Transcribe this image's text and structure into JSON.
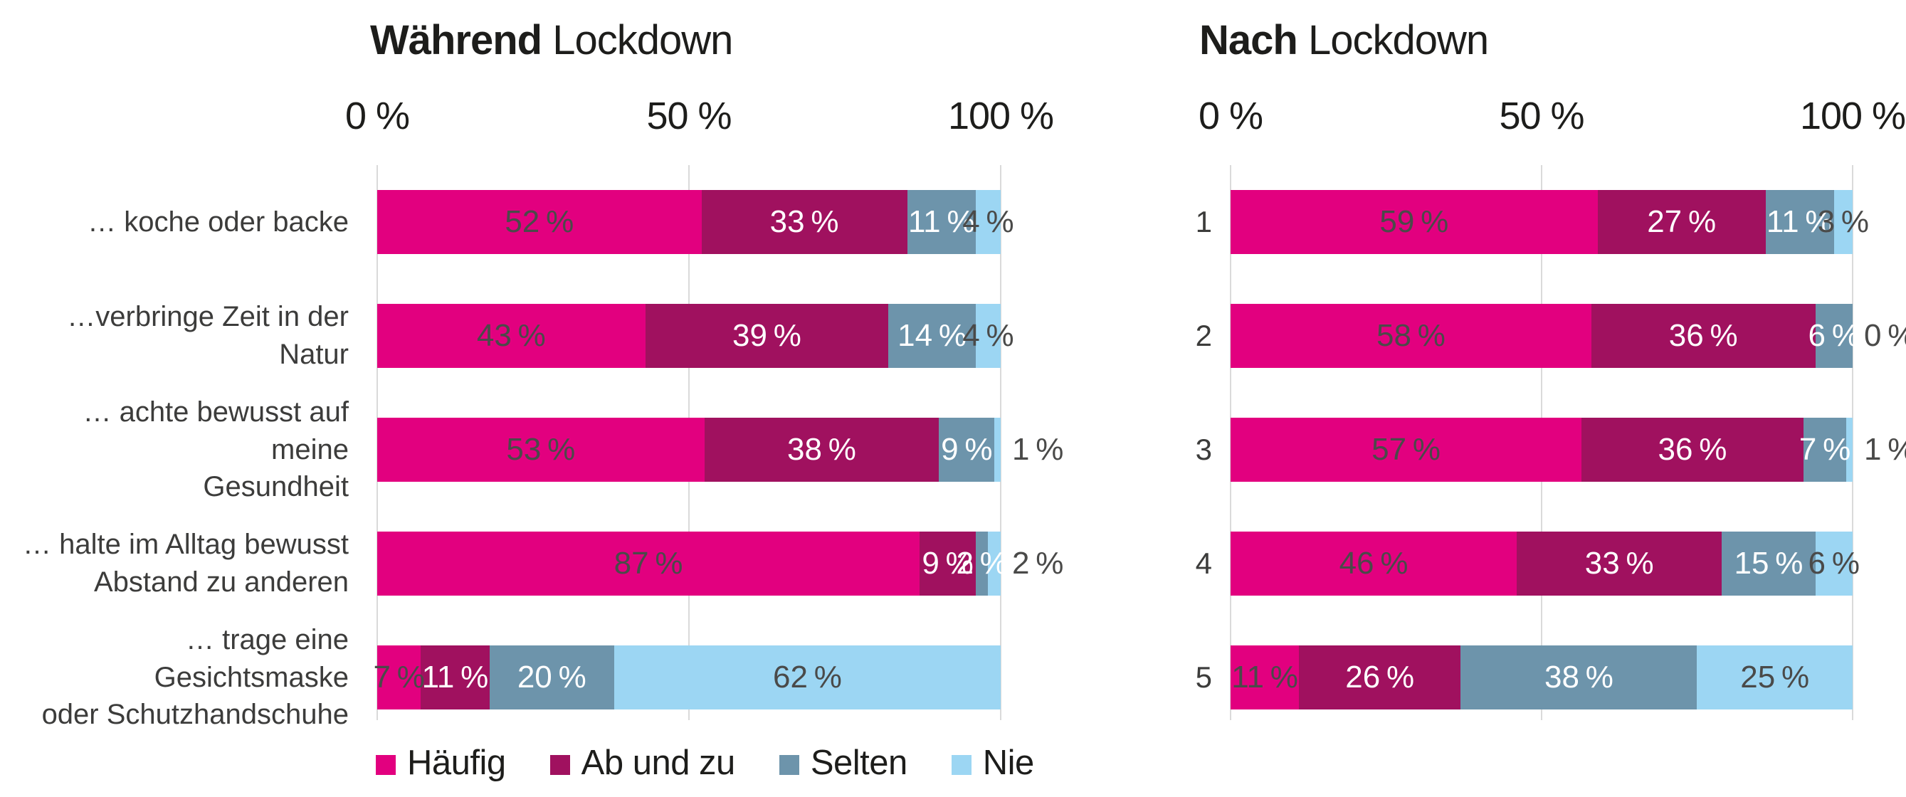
{
  "colors": {
    "haeufig": "#E2007F",
    "ab_und_zu": "#A0115F",
    "selten": "#6D94AB",
    "nie": "#9CD6F3",
    "grid": "#DADADA",
    "heading_text": "#1D1D1B",
    "category_text": "#3C3C3B",
    "value_dark": "#4A4A49",
    "value_light": "#FFFFFF"
  },
  "axis": {
    "ticks": [
      "0 %",
      "50 %",
      "100 %"
    ],
    "xlim": [
      0,
      100
    ]
  },
  "legend": {
    "position": "bottom",
    "entries": [
      {
        "label": "Häufig",
        "color": "#E2007F"
      },
      {
        "label": "Ab und zu",
        "color": "#A0115F"
      },
      {
        "label": "Selten",
        "color": "#6D94AB"
      },
      {
        "label": "Nie",
        "color": "#9CD6F3"
      }
    ]
  },
  "chart_data": [
    {
      "type": "bar",
      "orientation": "horizontal_stacked",
      "title": "Während Lockdown",
      "title_bold": "Während",
      "title_regular": " Lockdown",
      "x_ticks": [
        "0 %",
        "50 %",
        "100 %"
      ],
      "xlim": [
        0,
        100
      ],
      "grid": true,
      "value_suffix": " %",
      "categories": [
        "… koche oder backe",
        "…verbringe Zeit in der Natur",
        "… achte bewusst auf meine\nGesundheit",
        "… halte im Alltag bewusst\nAbstand zu anderen",
        "… trage eine Gesichtsmaske\noder Schutzhandschuhe"
      ],
      "series": [
        {
          "name": "Häufig",
          "color": "#E2007F",
          "label_style": "dark",
          "values": [
            52,
            43,
            53,
            87,
            7
          ]
        },
        {
          "name": "Ab und zu",
          "color": "#A0115F",
          "label_style": "light",
          "values": [
            33,
            39,
            38,
            9,
            11
          ]
        },
        {
          "name": "Selten",
          "color": "#6D94AB",
          "label_style": "light",
          "values": [
            11,
            14,
            9,
            2,
            20
          ]
        },
        {
          "name": "Nie",
          "color": "#9CD6F3",
          "label_style": "dark",
          "values": [
            4,
            4,
            1,
            2,
            62
          ]
        }
      ]
    },
    {
      "type": "bar",
      "orientation": "horizontal_stacked",
      "title": "Nach Lockdown",
      "title_bold": "Nach",
      "title_regular": " Lockdown",
      "x_ticks": [
        "0 %",
        "50 %",
        "100 %"
      ],
      "xlim": [
        0,
        100
      ],
      "grid": true,
      "value_suffix": " %",
      "categories": [
        "1",
        "2",
        "3",
        "4",
        "5"
      ],
      "series": [
        {
          "name": "Häufig",
          "color": "#E2007F",
          "label_style": "dark",
          "values": [
            59,
            58,
            57,
            46,
            11
          ]
        },
        {
          "name": "Ab und zu",
          "color": "#A0115F",
          "label_style": "light",
          "values": [
            27,
            36,
            36,
            33,
            26
          ]
        },
        {
          "name": "Selten",
          "color": "#6D94AB",
          "label_style": "light",
          "values": [
            11,
            6,
            7,
            15,
            38
          ]
        },
        {
          "name": "Nie",
          "color": "#9CD6F3",
          "label_style": "dark",
          "values": [
            3,
            0,
            1,
            6,
            25
          ]
        }
      ]
    }
  ]
}
